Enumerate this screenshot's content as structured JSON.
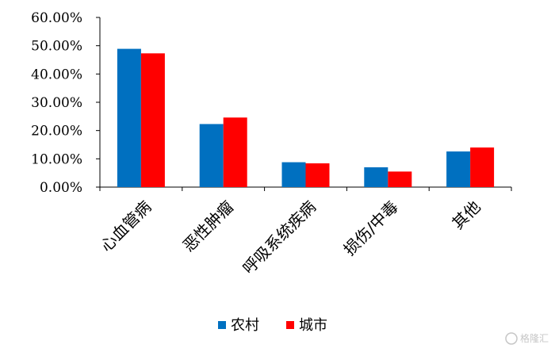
{
  "chart_data": {
    "type": "bar",
    "categories": [
      "心血管病",
      "恶性肿瘤",
      "呼吸系统疾病",
      "损伤/中毒",
      "其他"
    ],
    "series": [
      {
        "name": "农村",
        "color": "#0070C0",
        "values": [
          48.9,
          22.3,
          8.8,
          7.0,
          12.6
        ]
      },
      {
        "name": "城市",
        "color": "#FF0000",
        "values": [
          47.3,
          24.6,
          8.4,
          5.5,
          14.0
        ]
      }
    ],
    "ylim": [
      0,
      60
    ],
    "yticks": [
      "0.00%",
      "10.00%",
      "20.00%",
      "30.00%",
      "40.00%",
      "50.00%",
      "60.00%"
    ],
    "legend": "bottom",
    "grid": false
  },
  "watermark": {
    "text": "格隆汇",
    "icon": "logo-icon"
  }
}
